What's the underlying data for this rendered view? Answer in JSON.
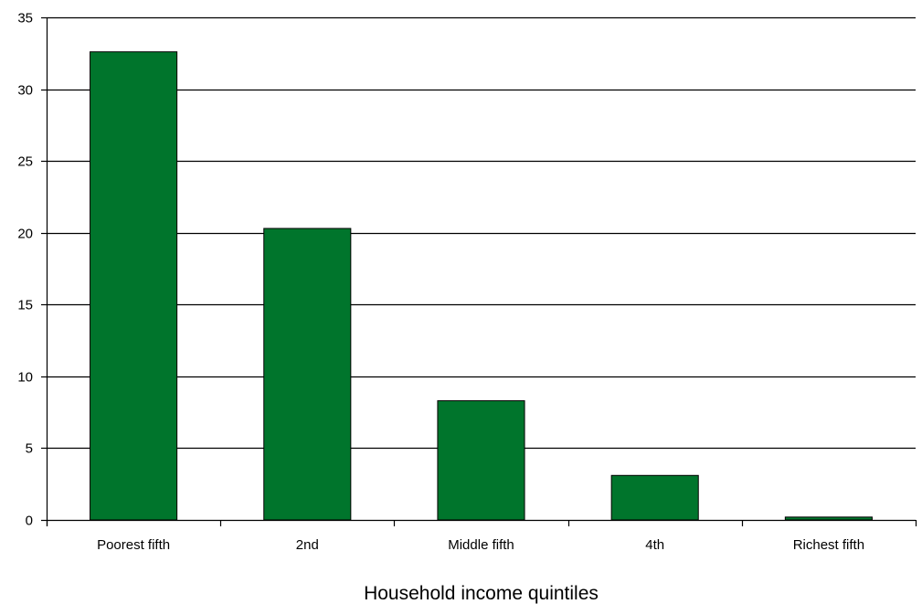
{
  "chart_data": {
    "type": "bar",
    "title": "",
    "xlabel": "Household income quintiles",
    "ylabel": "",
    "categories": [
      "Poorest fifth",
      "2nd",
      "Middle fifth",
      "4th",
      "Richest fifth"
    ],
    "values": [
      32.6,
      20.3,
      8.3,
      3.1,
      0.2
    ],
    "ylim": [
      0,
      35
    ],
    "yticks": [
      "0",
      "5",
      "10",
      "15",
      "20",
      "25",
      "30",
      "35"
    ],
    "grid": true,
    "colors": {
      "bar": "#00752c",
      "bar_border": "#000000",
      "grid": "#000000"
    }
  }
}
